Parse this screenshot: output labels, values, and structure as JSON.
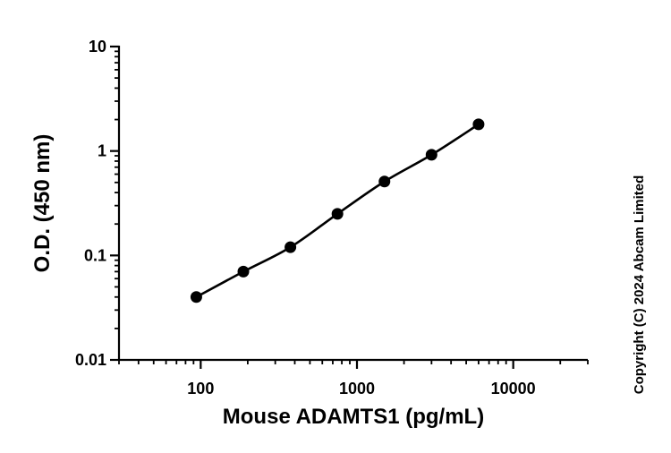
{
  "chart_data": {
    "type": "scatter",
    "title": "",
    "xlabel": "Mouse ADAMTS1 (pg/mL)",
    "ylabel": "O.D. (450 nm)",
    "x_scale": "log",
    "y_scale": "log",
    "xlim": [
      30,
      30000
    ],
    "ylim": [
      0.01,
      10
    ],
    "x_ticks": [
      100,
      1000,
      10000
    ],
    "x_tick_labels": [
      "100",
      "1000",
      "10000"
    ],
    "y_ticks": [
      0.01,
      0.1,
      1,
      10
    ],
    "y_tick_labels": [
      "0.01",
      "0.1",
      "1",
      "10"
    ],
    "grid": false,
    "fit_line": true,
    "series": [
      {
        "x": [
          93.75,
          187.5,
          375,
          750,
          1500,
          3000,
          6000
        ],
        "y": [
          0.04,
          0.07,
          0.12,
          0.25,
          0.51,
          0.92,
          1.8
        ]
      }
    ],
    "colors": {
      "marker": "#000000",
      "line": "#000000"
    }
  },
  "copyright": "Copyright (C) 2024 Abcam Limited"
}
